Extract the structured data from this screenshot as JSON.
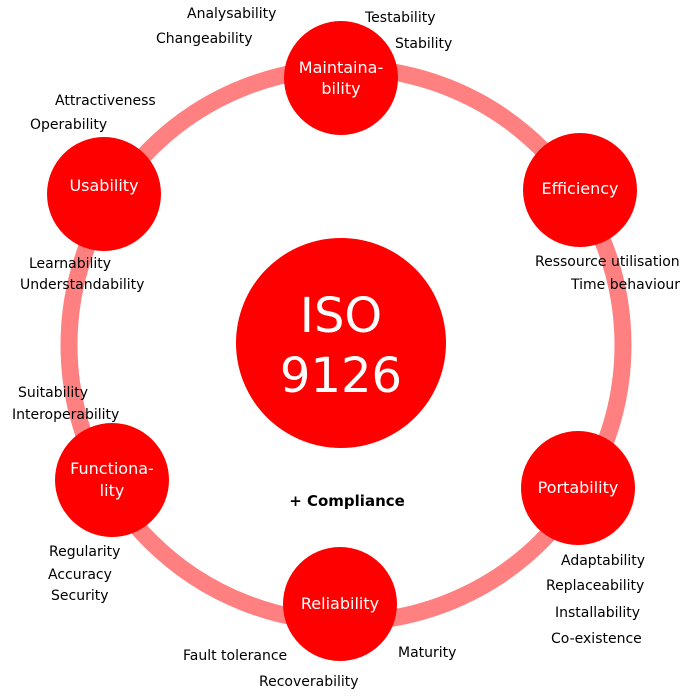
{
  "center": {
    "line1": "ISO",
    "line2": "9126"
  },
  "compliance": "+ Compliance",
  "colors": {
    "node": "#ff0000",
    "ring": "#ff8080",
    "text_on_node": "#ffffff",
    "sub_text": "#000000"
  },
  "characteristics": {
    "maintainability": {
      "line1": "Maintaina-",
      "line2": "bility",
      "sub": [
        "Analysability",
        "Changeability",
        "Testability",
        "Stability"
      ]
    },
    "efficiency": {
      "line1": "Efficiency",
      "sub": [
        "Ressource utilisation",
        "Time behaviour"
      ]
    },
    "portability": {
      "line1": "Portability",
      "sub": [
        "Adaptability",
        "Replaceability",
        "Installability",
        "Co-existence"
      ]
    },
    "reliability": {
      "line1": "Reliability",
      "sub": [
        "Fault tolerance",
        "Recoverability",
        "Maturity"
      ]
    },
    "functionality": {
      "line1": "Functiona-",
      "line2": "lity",
      "sub": [
        "Suitability",
        "Interoperability",
        "Regularity",
        "Accuracy",
        "Security"
      ]
    },
    "usability": {
      "line1": "Usability",
      "sub": [
        "Attractiveness",
        "Operability",
        "Learnability",
        "Understandability"
      ]
    }
  }
}
